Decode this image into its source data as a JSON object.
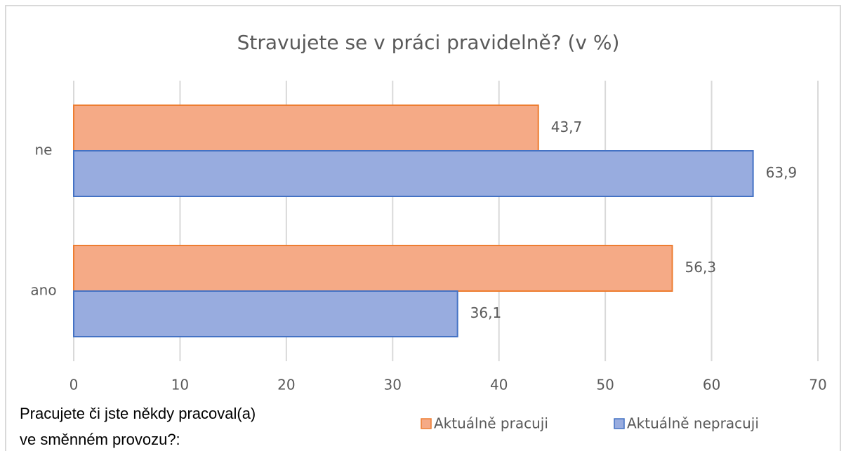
{
  "chart_data": {
    "type": "hbar",
    "title": "Stravujete  se v práci pravidelně?  (v %)",
    "categories": [
      "ne",
      "ano"
    ],
    "series": [
      {
        "name": "Aktuálně pracuji",
        "color": "#f5aa86",
        "border_color": "#ed7d31",
        "values": [
          43.7,
          56.3
        ],
        "value_labels": [
          "43,7",
          "56,3"
        ]
      },
      {
        "name": "Aktuálně nepracuji",
        "color": "#98acdf",
        "border_color": "#4472c4",
        "values": [
          63.9,
          36.1
        ],
        "value_labels": [
          "63,9",
          "36,1"
        ]
      }
    ],
    "xlim": [
      0,
      70
    ],
    "xticks": [
      0,
      10,
      20,
      30,
      40,
      50,
      60,
      70
    ],
    "grid": true,
    "annotation": [
      "Pracujete či jste někdy pracoval(a)",
      "ve směnném provozu?:"
    ]
  }
}
